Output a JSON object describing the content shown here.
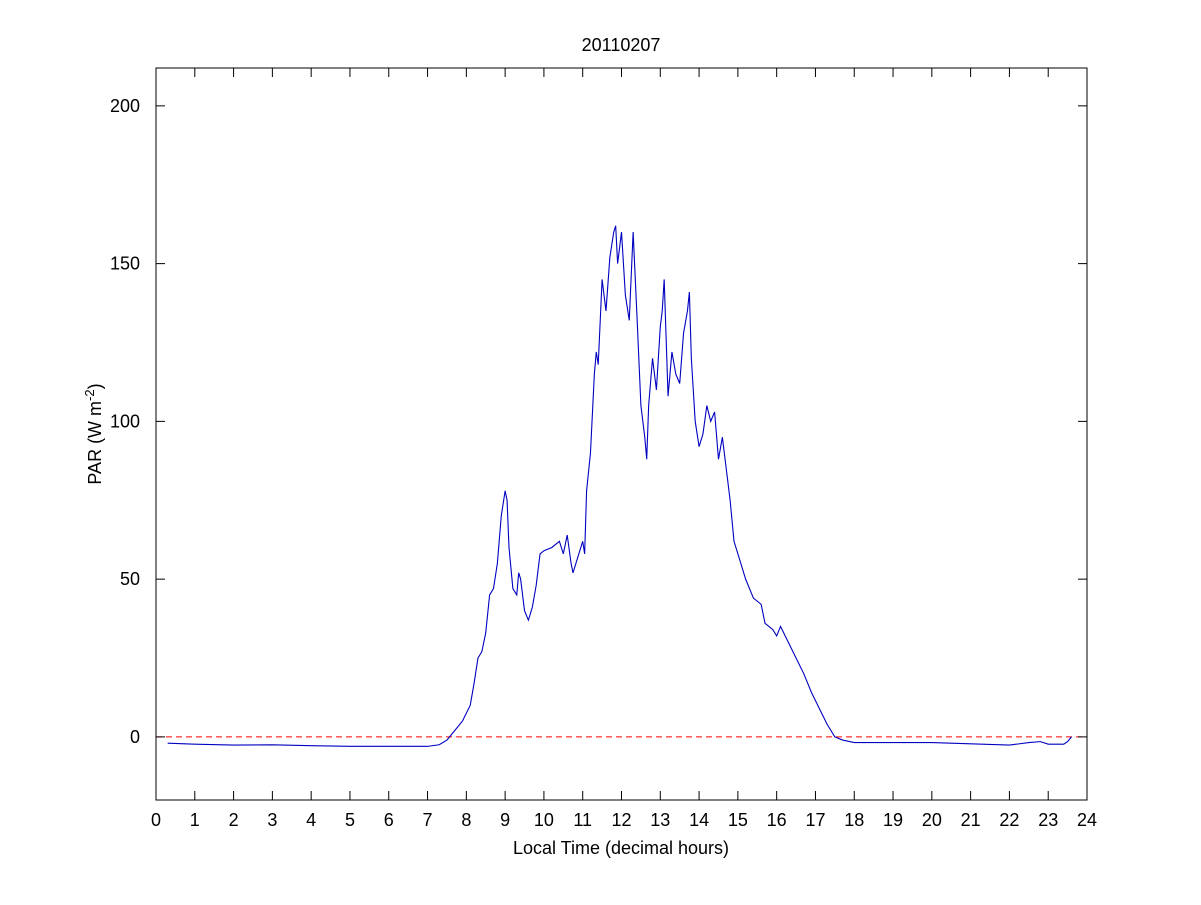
{
  "chart_data": {
    "type": "line",
    "title": "20110207",
    "xlabel": "Local Time (decimal hours)",
    "ylabel": {
      "text": "PAR (W m",
      "sup": "-2",
      "end": ")"
    },
    "color": "#0000c0",
    "x": [
      0.3,
      1,
      2,
      3,
      4,
      5,
      6,
      7,
      7.3,
      7.5,
      7.7,
      7.9,
      8.1,
      8.2,
      8.3,
      8.4,
      8.5,
      8.6,
      8.7,
      8.8,
      8.9,
      9.0,
      9.05,
      9.1,
      9.2,
      9.3,
      9.35,
      9.4,
      9.5,
      9.6,
      9.7,
      9.8,
      9.9,
      10.0,
      10.2,
      10.4,
      10.5,
      10.6,
      10.7,
      10.75,
      10.9,
      11.0,
      11.05,
      11.1,
      11.2,
      11.3,
      11.35,
      11.4,
      11.5,
      11.6,
      11.7,
      11.8,
      11.85,
      11.9,
      12.0,
      12.1,
      12.2,
      12.3,
      12.4,
      12.5,
      12.6,
      12.65,
      12.7,
      12.8,
      12.9,
      13.0,
      13.05,
      13.1,
      13.2,
      13.3,
      13.4,
      13.5,
      13.6,
      13.7,
      13.75,
      13.8,
      13.9,
      14.0,
      14.1,
      14.2,
      14.3,
      14.4,
      14.5,
      14.6,
      14.7,
      14.8,
      14.9,
      15.0,
      15.2,
      15.4,
      15.6,
      15.7,
      15.9,
      16.0,
      16.1,
      16.3,
      16.5,
      16.7,
      16.9,
      17.1,
      17.3,
      17.5,
      17.7,
      18,
      19,
      20,
      21,
      22,
      22.5,
      22.8,
      23,
      23.4,
      23.5,
      23.6
    ],
    "values": [
      -2,
      -2.3,
      -2.6,
      -2.5,
      -2.8,
      -3,
      -3,
      -3,
      -2.5,
      -1,
      2,
      5,
      10,
      17,
      25,
      27,
      33,
      45,
      47,
      55,
      70,
      78,
      75,
      60,
      47,
      45,
      52,
      50,
      40,
      37,
      41,
      48,
      58,
      59,
      60,
      62,
      58,
      64,
      55,
      52,
      58,
      62,
      58,
      78,
      90,
      115,
      122,
      118,
      145,
      135,
      152,
      160,
      162,
      150,
      160,
      140,
      132,
      160,
      133,
      105,
      95,
      88,
      105,
      120,
      110,
      130,
      135,
      145,
      108,
      122,
      115,
      112,
      128,
      135,
      141,
      120,
      100,
      92,
      96,
      105,
      100,
      103,
      88,
      95,
      85,
      75,
      62,
      58,
      50,
      44,
      42,
      36,
      34,
      32,
      35,
      30,
      25,
      20,
      14,
      9,
      4,
      0,
      -1,
      -1.8,
      -1.8,
      -1.8,
      -2.2,
      -2.6,
      -1.8,
      -1.5,
      -2.3,
      -2.3,
      -1.5,
      0
    ],
    "reference_line": {
      "value": 0,
      "color": "#ff0000",
      "style": "dashed"
    },
    "xlim": [
      0,
      24
    ],
    "ylim": [
      -20,
      212
    ],
    "xticks": [
      0,
      1,
      2,
      3,
      4,
      5,
      6,
      7,
      8,
      9,
      10,
      11,
      12,
      13,
      14,
      15,
      16,
      17,
      18,
      19,
      20,
      21,
      22,
      23,
      24
    ],
    "yticks": [
      0,
      50,
      100,
      150,
      200
    ]
  }
}
